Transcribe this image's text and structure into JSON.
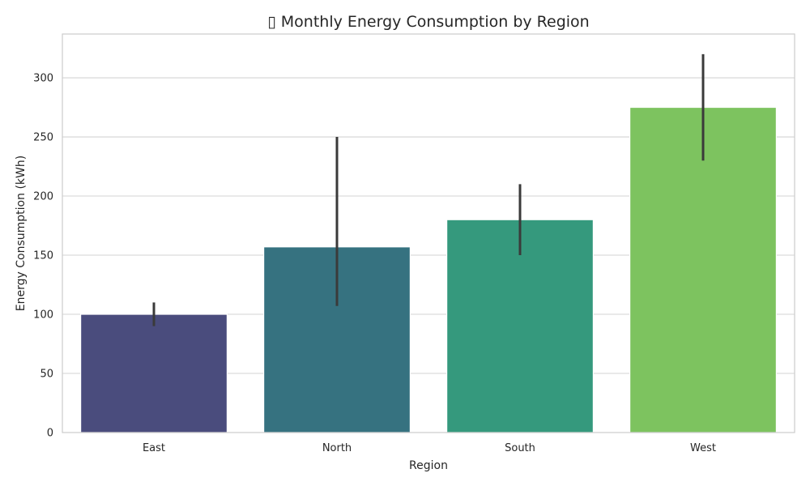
{
  "chart_data": {
    "type": "bar",
    "title": "▯ Monthly Energy Consumption by Region",
    "xlabel": "Region",
    "ylabel": "Energy Consumption (kWh)",
    "categories": [
      "East",
      "North",
      "South",
      "West"
    ],
    "values": [
      100,
      157,
      180,
      275
    ],
    "error_low": [
      90,
      107,
      150,
      230
    ],
    "error_high": [
      110,
      250,
      210,
      320
    ],
    "ylim": [
      0,
      337
    ],
    "yticks": [
      0,
      50,
      100,
      150,
      200,
      250,
      300
    ],
    "grid": "horizontal",
    "colors": [
      "#4a4c7d",
      "#367280",
      "#35997d",
      "#7dc35f"
    ]
  }
}
